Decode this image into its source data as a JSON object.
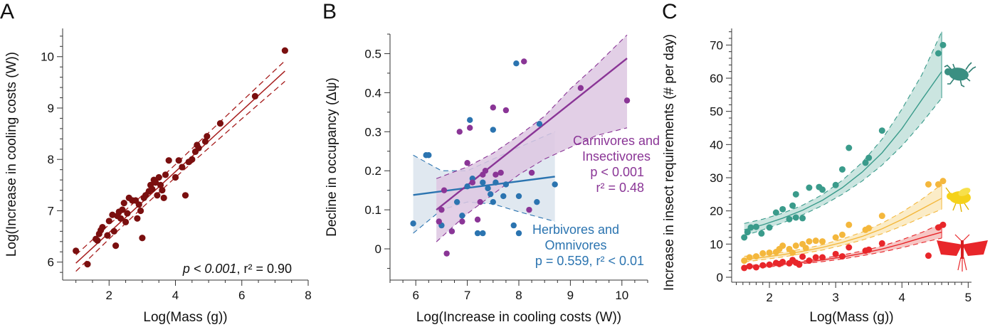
{
  "chart_data": [
    {
      "panel": "A",
      "type": "scatter",
      "xlabel": "Log(Mass (g))",
      "ylabel": "Log(Increase in cooling costs (W))",
      "xlim": [
        0.6,
        8.0
      ],
      "ylim": [
        5.65,
        10.55
      ],
      "xticks": [
        2,
        4,
        6,
        8
      ],
      "yticks": [
        6,
        7,
        8,
        9,
        10
      ],
      "annotation": {
        "p": "p < 0.001",
        "r2": ", r² = 0.90"
      },
      "colors": {
        "points": "#7a0f0f",
        "line": "#a61c1c"
      },
      "fit": {
        "x": [
          1.0,
          7.3
        ],
        "y": [
          5.98,
          9.72
        ]
      },
      "ci": {
        "x": [
          1.0,
          2.0,
          3.0,
          4.0,
          5.0,
          6.0,
          7.3
        ],
        "lower": [
          5.82,
          6.45,
          7.06,
          7.65,
          8.22,
          8.79,
          9.52
        ],
        "upper": [
          6.14,
          6.73,
          7.3,
          7.9,
          8.52,
          9.13,
          9.92
        ]
      },
      "points": [
        [
          1.0,
          6.22
        ],
        [
          1.35,
          5.96
        ],
        [
          1.6,
          6.45
        ],
        [
          1.65,
          6.42
        ],
        [
          1.7,
          6.55
        ],
        [
          1.75,
          6.62
        ],
        [
          1.8,
          6.68
        ],
        [
          1.95,
          6.52
        ],
        [
          2.0,
          6.8
        ],
        [
          2.1,
          6.92
        ],
        [
          2.15,
          6.6
        ],
        [
          2.2,
          6.32
        ],
        [
          2.25,
          6.9
        ],
        [
          2.3,
          6.98
        ],
        [
          2.35,
          6.85
        ],
        [
          2.4,
          7.02
        ],
        [
          2.45,
          7.15
        ],
        [
          2.5,
          6.78
        ],
        [
          2.55,
          6.95
        ],
        [
          2.6,
          7.25
        ],
        [
          2.7,
          7.2
        ],
        [
          2.8,
          7.2
        ],
        [
          2.85,
          6.85
        ],
        [
          2.9,
          7.12
        ],
        [
          2.95,
          7.0
        ],
        [
          3.0,
          6.47
        ],
        [
          3.05,
          7.25
        ],
        [
          3.1,
          7.3
        ],
        [
          3.2,
          7.38
        ],
        [
          3.25,
          7.5
        ],
        [
          3.3,
          7.42
        ],
        [
          3.35,
          7.6
        ],
        [
          3.4,
          7.55
        ],
        [
          3.45,
          7.3
        ],
        [
          3.5,
          7.65
        ],
        [
          3.55,
          7.5
        ],
        [
          3.6,
          7.4
        ],
        [
          3.65,
          7.25
        ],
        [
          3.7,
          7.7
        ],
        [
          3.8,
          7.98
        ],
        [
          4.0,
          7.65
        ],
        [
          4.1,
          7.98
        ],
        [
          4.2,
          7.85
        ],
        [
          4.3,
          7.3
        ],
        [
          4.4,
          7.95
        ],
        [
          4.5,
          8.0
        ],
        [
          4.6,
          8.15
        ],
        [
          4.65,
          8.28
        ],
        [
          4.7,
          8.22
        ],
        [
          4.9,
          8.35
        ],
        [
          4.95,
          8.45
        ],
        [
          5.35,
          8.7
        ],
        [
          6.4,
          9.23
        ],
        [
          7.3,
          10.12
        ]
      ]
    },
    {
      "panel": "B",
      "type": "scatter",
      "xlabel": "Log(Increase in cooling costs (W))",
      "ylabel": "Decline in occupancy (Δψ)",
      "xlim": [
        5.5,
        10.5
      ],
      "ylim": [
        -0.08,
        0.55
      ],
      "xticks": [
        6,
        7,
        8,
        9,
        10
      ],
      "yticks": [
        0,
        0.1,
        0.2,
        0.3,
        0.4,
        0.5
      ],
      "ytick_labels": [
        "0",
        "0.1",
        "0.2",
        "0.3",
        "0.4",
        "0.5"
      ],
      "colors": {
        "carnivores": "#8a3596",
        "carnivores_fill": "#ddc7e2",
        "herbivores": "#2b74b0",
        "herbivores_fill": "#dde6ee"
      },
      "series": [
        {
          "name": "Carnivores and Insectivores",
          "label_lines": [
            "Carnivores and",
            "Insectivores"
          ],
          "stats": [
            "p < 0.001",
            "r² = 0.48"
          ],
          "fit": {
            "x": [
              6.4,
              10.1
            ],
            "y": [
              0.1,
              0.488
            ]
          },
          "ci": {
            "x": [
              6.4,
              7.0,
              7.5,
              8.0,
              8.5,
              9.0,
              9.5,
              10.1
            ],
            "lower": [
              0.018,
              0.09,
              0.14,
              0.19,
              0.23,
              0.26,
              0.29,
              0.31
            ],
            "upper": [
              0.18,
              0.21,
              0.245,
              0.29,
              0.34,
              0.41,
              0.47,
              0.548
            ]
          },
          "points": [
            [
              6.45,
              0.07
            ],
            [
              6.5,
              0.1
            ],
            [
              6.55,
              0.15
            ],
            [
              6.6,
              -0.012
            ],
            [
              6.7,
              0.045
            ],
            [
              6.85,
              0.3
            ],
            [
              6.9,
              0.07
            ],
            [
              7.0,
              0.22
            ],
            [
              7.05,
              0.31
            ],
            [
              7.1,
              0.17
            ],
            [
              7.2,
              0.075
            ],
            [
              7.25,
              0.12
            ],
            [
              7.3,
              0.19
            ],
            [
              7.35,
              0.2
            ],
            [
              7.5,
              0.362
            ],
            [
              7.55,
              0.19
            ],
            [
              7.65,
              0.195
            ],
            [
              7.75,
              0.355
            ],
            [
              8.1,
              0.48
            ],
            [
              8.2,
              0.1
            ],
            [
              8.25,
              0.195
            ],
            [
              9.2,
              0.412
            ],
            [
              10.1,
              0.38
            ]
          ]
        },
        {
          "name": "Herbivores and Omnivores",
          "label_lines": [
            "Herbivores and",
            "Omnivores"
          ],
          "stats": [
            "p = 0.559, r² < 0.01"
          ],
          "fit": {
            "x": [
              5.95,
              8.7
            ],
            "y": [
              0.138,
              0.185
            ]
          },
          "ci": {
            "x": [
              5.95,
              6.5,
              7.0,
              7.5,
              8.0,
              8.7
            ],
            "lower": [
              0.04,
              0.1,
              0.12,
              0.115,
              0.095,
              0.07
            ],
            "upper": [
              0.24,
              0.2,
              0.2,
              0.23,
              0.26,
              0.3
            ]
          },
          "points": [
            [
              5.95,
              0.065
            ],
            [
              6.2,
              0.24
            ],
            [
              6.25,
              0.24
            ],
            [
              6.5,
              0.06
            ],
            [
              6.7,
              0.045
            ],
            [
              6.8,
              0.12
            ],
            [
              6.9,
              0.085
            ],
            [
              7.0,
              0.16
            ],
            [
              7.05,
              0.33
            ],
            [
              7.1,
              0.18
            ],
            [
              7.2,
              0.04
            ],
            [
              7.3,
              0.17
            ],
            [
              7.3,
              0.04
            ],
            [
              7.4,
              0.155
            ],
            [
              7.45,
              0.14
            ],
            [
              7.5,
              0.12
            ],
            [
              7.5,
              0.305
            ],
            [
              7.55,
              0.17
            ],
            [
              7.7,
              0.135
            ],
            [
              7.75,
              0.165
            ],
            [
              7.9,
              0.06
            ],
            [
              7.95,
              0.475
            ],
            [
              8.0,
              0.04
            ],
            [
              8.0,
              0.135
            ],
            [
              8.35,
              0.12
            ],
            [
              8.4,
              0.32
            ],
            [
              8.7,
              0.165
            ]
          ]
        }
      ]
    },
    {
      "panel": "C",
      "type": "scatter",
      "xlabel": "Log(Mass (g))",
      "ylabel": "Increase in insect requirements (# per day)",
      "xlim": [
        1.43,
        5.05
      ],
      "ylim": [
        -1.5,
        75
      ],
      "xticks": [
        2,
        3,
        4,
        5
      ],
      "yticks": [
        0,
        10,
        20,
        30,
        40,
        50,
        60,
        70
      ],
      "icons": [
        "beetle-icon",
        "fly-icon",
        "moth-icon"
      ],
      "series": [
        {
          "color": "#3a9b8b",
          "fill": "#c8e4de",
          "fit": {
            "x": [
              1.62,
              1.9,
              2.2,
              2.5,
              2.8,
              3.1,
              3.4,
              3.7,
              4.0,
              4.3,
              4.6
            ],
            "y": [
              14.3,
              15.8,
              17.8,
              20.2,
              23.2,
              27.0,
              31.7,
              37.5,
              44.8,
              53.5,
              62.0
            ]
          },
          "ci_lower": [
            12.5,
            14.3,
            16.4,
            18.8,
            21.6,
            25.0,
            29.0,
            33.8,
            39.6,
            46.5,
            54.0
          ],
          "ci_upper": [
            16.2,
            17.5,
            19.3,
            21.7,
            24.9,
            29.2,
            34.6,
            41.6,
            50.7,
            61.0,
            74.0
          ],
          "points": [
            [
              1.62,
              12.0
            ],
            [
              1.67,
              13.6
            ],
            [
              1.72,
              15.0
            ],
            [
              1.8,
              15.2
            ],
            [
              1.88,
              13.2
            ],
            [
              2.0,
              15.0
            ],
            [
              2.1,
              19.5
            ],
            [
              2.2,
              20.5
            ],
            [
              2.3,
              17.5
            ],
            [
              2.35,
              21.6
            ],
            [
              2.4,
              18.0
            ],
            [
              2.4,
              25.0
            ],
            [
              2.5,
              17.8
            ],
            [
              2.6,
              27.0
            ],
            [
              2.75,
              27.2
            ],
            [
              2.8,
              26.4
            ],
            [
              3.0,
              27.8
            ],
            [
              3.1,
              32.5
            ],
            [
              3.2,
              39.0
            ],
            [
              3.45,
              34.5
            ],
            [
              3.5,
              36.0
            ],
            [
              3.7,
              44.2
            ],
            [
              4.55,
              67.5
            ],
            [
              4.62,
              70.0
            ]
          ]
        },
        {
          "color": "#f4b73c",
          "fill": "#fbebc4",
          "fit": {
            "x": [
              1.62,
              1.9,
              2.2,
              2.5,
              2.8,
              3.1,
              3.4,
              3.7,
              4.0,
              4.3,
              4.6
            ],
            "y": [
              5.4,
              6.0,
              6.8,
              7.8,
              9.0,
              10.5,
              12.3,
              14.6,
              17.4,
              20.6,
              23.8
            ]
          },
          "ci_lower": [
            4.6,
            5.3,
            6.1,
            7.1,
            8.2,
            9.6,
            11.2,
            13.1,
            15.4,
            18.0,
            20.5
          ],
          "ci_upper": [
            6.3,
            6.8,
            7.5,
            8.5,
            9.8,
            11.5,
            13.6,
            16.3,
            19.6,
            23.5,
            28.0
          ],
          "points": [
            [
              1.62,
              5.0
            ],
            [
              1.7,
              6.0
            ],
            [
              1.8,
              6.3
            ],
            [
              1.9,
              7.2
            ],
            [
              2.0,
              7.4
            ],
            [
              2.1,
              7.6
            ],
            [
              2.15,
              8.5
            ],
            [
              2.2,
              9.5
            ],
            [
              2.3,
              8.5
            ],
            [
              2.35,
              7.4
            ],
            [
              2.4,
              9.5
            ],
            [
              2.5,
              10.0
            ],
            [
              2.55,
              8.8
            ],
            [
              2.6,
              10.8
            ],
            [
              2.7,
              11.0
            ],
            [
              2.8,
              10.8
            ],
            [
              3.0,
              12.0
            ],
            [
              3.1,
              12.8
            ],
            [
              3.2,
              15.8
            ],
            [
              3.45,
              14.3
            ],
            [
              3.5,
              14.8
            ],
            [
              3.7,
              18.5
            ],
            [
              4.4,
              28.0
            ],
            [
              4.55,
              28.0
            ],
            [
              4.62,
              29.0
            ]
          ]
        },
        {
          "color": "#e8262a",
          "fill": "#f6c4c2",
          "fit": {
            "x": [
              1.62,
              1.9,
              2.2,
              2.5,
              2.8,
              3.1,
              3.4,
              3.7,
              4.0,
              4.3,
              4.6
            ],
            "y": [
              3.0,
              3.4,
              3.9,
              4.5,
              5.2,
              6.1,
              7.2,
              8.5,
              10.1,
              11.9,
              13.6
            ]
          },
          "ci_lower": [
            2.6,
            3.0,
            3.5,
            4.1,
            4.7,
            5.5,
            6.5,
            7.6,
            8.9,
            10.4,
            11.8
          ],
          "ci_upper": [
            3.5,
            3.8,
            4.3,
            4.9,
            5.7,
            6.7,
            7.9,
            9.4,
            11.3,
            13.5,
            16.2
          ],
          "points": [
            [
              1.62,
              2.8
            ],
            [
              1.7,
              3.3
            ],
            [
              1.8,
              3.0
            ],
            [
              1.9,
              3.6
            ],
            [
              2.0,
              3.8
            ],
            [
              2.1,
              4.3
            ],
            [
              2.15,
              4.0
            ],
            [
              2.2,
              4.6
            ],
            [
              2.3,
              4.2
            ],
            [
              2.35,
              5.2
            ],
            [
              2.4,
              4.4
            ],
            [
              2.45,
              3.8
            ],
            [
              2.5,
              6.2
            ],
            [
              2.6,
              5.0
            ],
            [
              2.7,
              6.0
            ],
            [
              2.8,
              6.0
            ],
            [
              3.0,
              7.0
            ],
            [
              3.1,
              6.3
            ],
            [
              3.2,
              9.0
            ],
            [
              3.45,
              8.0
            ],
            [
              3.5,
              8.3
            ],
            [
              3.7,
              10.2
            ],
            [
              4.4,
              6.5
            ],
            [
              4.55,
              15.0
            ],
            [
              4.62,
              15.8
            ]
          ]
        }
      ]
    }
  ]
}
